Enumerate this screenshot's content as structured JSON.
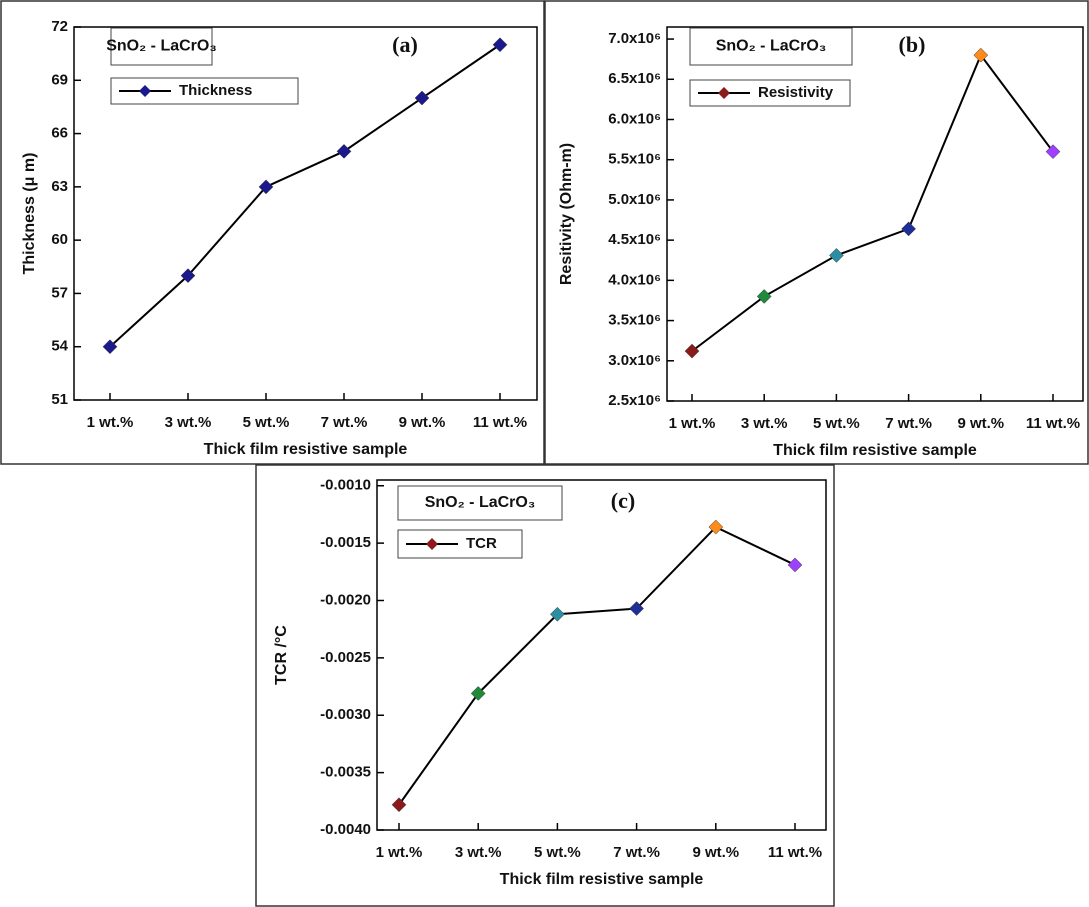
{
  "chart_data": [
    {
      "type": "line",
      "title": "(a)",
      "annotation": "SnO₂ - LaCrO₃",
      "xlabel": "Thick film resistive sample",
      "ylabel": "Thickness (μ m)",
      "categories": [
        "1 wt.%",
        "3 wt.%",
        "5 wt.%",
        "7 wt.%",
        "9 wt.%",
        "11 wt.%"
      ],
      "series": [
        {
          "name": "Thickness",
          "color": "#1a1a8c",
          "line_color": "#000000",
          "marker_colors": [
            "#1a1a8c",
            "#1a1a8c",
            "#1a1a8c",
            "#1a1a8c",
            "#1a1a8c",
            "#1a1a8c"
          ],
          "values": [
            54,
            58,
            63,
            65,
            68,
            71
          ]
        }
      ],
      "ylim": [
        51,
        72
      ],
      "yticks": [
        51,
        54,
        57,
        60,
        63,
        66,
        69,
        72
      ]
    },
    {
      "type": "line",
      "title": "(b)",
      "annotation": "SnO₂ - LaCrO₃",
      "xlabel": "Thick film resistive sample",
      "ylabel": "Resitivity (Ohm-m)",
      "categories": [
        "1 wt.%",
        "3 wt.%",
        "5 wt.%",
        "7 wt.%",
        "9 wt.%",
        "11 wt.%"
      ],
      "series": [
        {
          "name": "Resistivity",
          "color": "#8b1a1a",
          "line_color": "#000000",
          "marker_colors": [
            "#8b1a1a",
            "#1f8a3a",
            "#2a8fa0",
            "#1f2f9a",
            "#ff8c1a",
            "#a040ff"
          ],
          "values": [
            3120000,
            3800000,
            4310000,
            4640000,
            6800000,
            5600000
          ]
        }
      ],
      "ylim": [
        2500000,
        7150000
      ],
      "yticks": [
        {
          "value": 2500000,
          "label": "2.5x10⁶"
        },
        {
          "value": 3000000,
          "label": "3.0x10⁶"
        },
        {
          "value": 3500000,
          "label": "3.5x10⁶"
        },
        {
          "value": 4000000,
          "label": "4.0x10⁶"
        },
        {
          "value": 4500000,
          "label": "4.5x10⁶"
        },
        {
          "value": 5000000,
          "label": "5.0x10⁶"
        },
        {
          "value": 5500000,
          "label": "5.5x10⁶"
        },
        {
          "value": 6000000,
          "label": "6.0x10⁶"
        },
        {
          "value": 6500000,
          "label": "6.5x10⁶"
        },
        {
          "value": 7000000,
          "label": "7.0x10⁶"
        }
      ]
    },
    {
      "type": "line",
      "title": "(c)",
      "annotation": "SnO₂ - LaCrO₃",
      "xlabel": "Thick film resistive sample",
      "ylabel": "TCR /°C",
      "categories": [
        "1 wt.%",
        "3 wt.%",
        "5 wt.%",
        "7 wt.%",
        "9 wt.%",
        "11 wt.%"
      ],
      "series": [
        {
          "name": "TCR",
          "color": "#8b1a1a",
          "line_color": "#000000",
          "marker_colors": [
            "#8b1a1a",
            "#1f8a3a",
            "#2a8fa0",
            "#1f2f9a",
            "#ff8c1a",
            "#a040ff"
          ],
          "values": [
            -0.00378,
            -0.00281,
            -0.00212,
            -0.00207,
            -0.00136,
            -0.00169
          ]
        }
      ],
      "ylim": [
        -0.004,
        -0.00095
      ],
      "yticks": [
        {
          "value": -0.004,
          "label": "-0.0040"
        },
        -0.0035,
        {
          "value": -0.003,
          "label": "-0.0030"
        },
        -0.0025,
        {
          "value": -0.002,
          "label": "-0.0020"
        },
        -0.0015,
        {
          "value": -0.001,
          "label": "-0.0010"
        }
      ]
    }
  ]
}
